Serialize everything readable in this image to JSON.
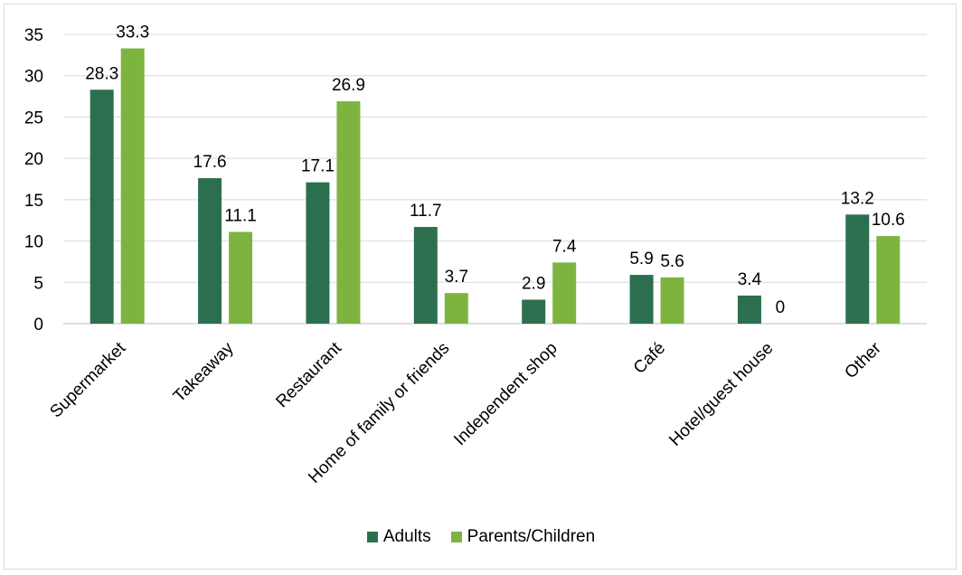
{
  "chart_data": {
    "type": "bar",
    "categories": [
      "Supermarket",
      "Takeaway",
      "Restaurant",
      "Home of family or friends",
      "Independent shop",
      "Café",
      "Hotel/guest house",
      "Other"
    ],
    "series": [
      {
        "name": "Adults",
        "color": "#2b6f4f",
        "values": [
          28.3,
          17.6,
          17.1,
          11.7,
          2.9,
          5.9,
          3.4,
          13.2
        ]
      },
      {
        "name": "Parents/Children",
        "color": "#7db43f",
        "values": [
          33.3,
          11.1,
          26.9,
          3.7,
          7.4,
          5.6,
          0,
          10.6
        ]
      }
    ],
    "ylim": [
      0,
      35
    ],
    "yticks": [
      0,
      5,
      10,
      15,
      20,
      25,
      30,
      35
    ],
    "grid": true,
    "legend_position": "bottom"
  }
}
